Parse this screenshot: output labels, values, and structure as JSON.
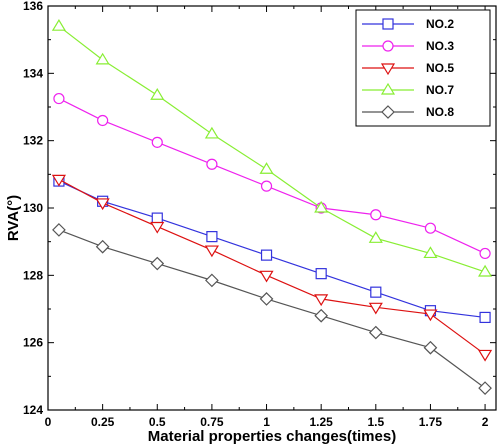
{
  "chart_data": {
    "type": "line",
    "title": "",
    "xlabel": "Material properties changes(times)",
    "ylabel": "RVA(°)",
    "x": [
      0.05,
      0.25,
      0.5,
      0.75,
      1,
      1.25,
      1.5,
      1.75,
      2
    ],
    "x_ticks": [
      0,
      0.25,
      0.5,
      0.75,
      1,
      1.25,
      1.5,
      1.75,
      2
    ],
    "x_tick_labels": [
      "0",
      "0.25",
      "0.5",
      "0.75",
      "1",
      "1.25",
      "1.5",
      "1.75",
      "2"
    ],
    "xlim": [
      0,
      2.05
    ],
    "y_ticks": [
      124,
      126,
      128,
      130,
      132,
      134,
      136
    ],
    "y_tick_labels": [
      "124",
      "126",
      "128",
      "130",
      "132",
      "134",
      "136"
    ],
    "ylim": [
      124,
      136
    ],
    "grid": false,
    "legend_position": "top-right",
    "series": [
      {
        "name": "NO.2",
        "color": "#3333dd",
        "marker": "square",
        "values": [
          130.8,
          130.2,
          129.7,
          129.15,
          128.6,
          128.05,
          127.5,
          126.95,
          126.75
        ]
      },
      {
        "name": "NO.3",
        "color": "#ee22ee",
        "marker": "circle",
        "values": [
          133.25,
          132.6,
          131.95,
          131.3,
          130.65,
          130.0,
          129.8,
          129.4,
          128.65
        ]
      },
      {
        "name": "NO.5",
        "color": "#dd1111",
        "marker": "triangle-down",
        "values": [
          130.85,
          130.15,
          129.45,
          128.75,
          128.0,
          127.3,
          127.05,
          126.85,
          125.65
        ]
      },
      {
        "name": "NO.7",
        "color": "#88ee33",
        "marker": "triangle-up",
        "values": [
          135.4,
          134.4,
          133.35,
          132.2,
          131.15,
          130.0,
          129.1,
          128.65,
          128.1
        ]
      },
      {
        "name": "NO.8",
        "color": "#555555",
        "marker": "diamond",
        "values": [
          129.35,
          128.85,
          128.35,
          127.85,
          127.3,
          126.8,
          126.3,
          125.85,
          124.65
        ]
      }
    ]
  }
}
